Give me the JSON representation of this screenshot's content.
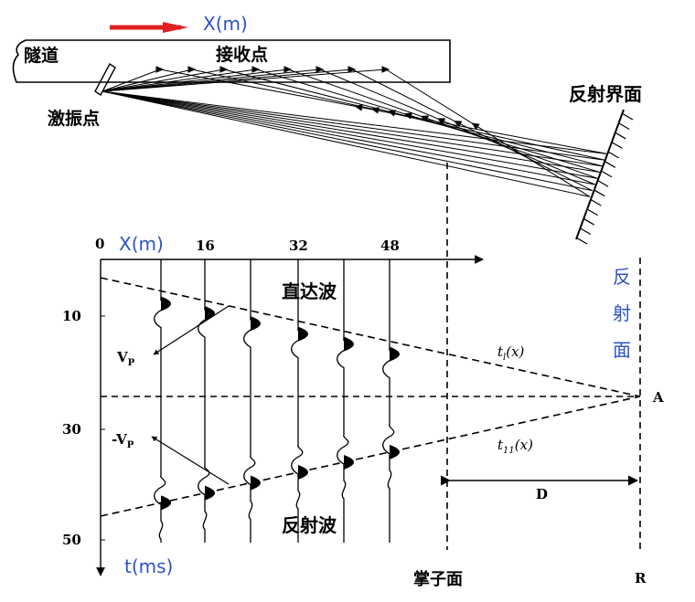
{
  "top_diagram": {
    "x_axis_label": "X(m)",
    "tunnel_label": "隧道",
    "receiver_label": "接收点",
    "source_label": "激振点",
    "reflector_label": "反射界面"
  },
  "bottom_diagram": {
    "origin_label": "0",
    "x_axis_label": "X(m)",
    "x_ticks": [
      "16",
      "32",
      "48"
    ],
    "y_ticks": [
      "10",
      "30",
      "50"
    ],
    "y_axis_label": "t(ms)",
    "direct_wave_label": "直达波",
    "reflected_wave_label": "反射波",
    "vp_label": "V",
    "vp_sub": "P",
    "neg_vp_label": "-V",
    "neg_vp_sub": "P",
    "t1_label": "t",
    "t1_sub": "l",
    "t1_arg": "(x)",
    "t11_label": "t",
    "t11_sub": "11",
    "t11_arg": "(x)",
    "point_a_label": "A",
    "distance_label": "D",
    "reflector_vertical_chars": [
      "反",
      "射",
      "面"
    ],
    "face_label": "掌子面",
    "r_label": "R"
  },
  "colors": {
    "ink": "#000000",
    "blue_label": "#2d52c8",
    "red_arrow": "#e02020"
  }
}
